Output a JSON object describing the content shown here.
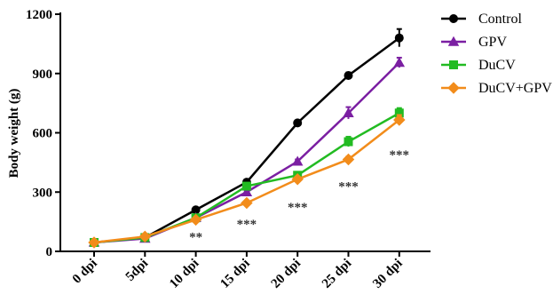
{
  "chart_data": {
    "type": "line",
    "ylabel": "Body weight (g)",
    "ylim": [
      0,
      1200
    ],
    "yticks": [
      "0",
      "300",
      "600",
      "900",
      "1200"
    ],
    "categories": [
      "0 dpi",
      "5dpi",
      "10 dpi",
      "15 dpi",
      "20 dpi",
      "25 dpi",
      "30 dpi"
    ],
    "series": [
      {
        "name": "Control",
        "marker": "circle",
        "color": "#000000",
        "values": [
          45,
          70,
          210,
          350,
          650,
          890,
          1080
        ],
        "errors": [
          0,
          0,
          10,
          10,
          10,
          15,
          45
        ]
      },
      {
        "name": "GPV",
        "marker": "triangle",
        "color": "#7b1fa2",
        "values": [
          45,
          65,
          170,
          300,
          455,
          700,
          955
        ],
        "errors": [
          0,
          0,
          8,
          10,
          10,
          30,
          25
        ]
      },
      {
        "name": "DuCV",
        "marker": "square",
        "color": "#22bb22",
        "values": [
          45,
          70,
          170,
          330,
          385,
          555,
          700
        ],
        "errors": [
          0,
          0,
          8,
          10,
          10,
          25,
          25
        ]
      },
      {
        "name": "DuCV+GPV",
        "marker": "diamond",
        "color": "#f28c1b",
        "values": [
          45,
          75,
          160,
          245,
          365,
          465,
          665
        ],
        "errors": [
          0,
          0,
          8,
          10,
          10,
          15,
          25
        ]
      }
    ],
    "annotations": [
      {
        "category": "10 dpi",
        "text": "**",
        "y": 75
      },
      {
        "category": "15 dpi",
        "text": "***",
        "y": 140
      },
      {
        "category": "20 dpi",
        "text": "***",
        "y": 225
      },
      {
        "category": "25 dpi",
        "text": "***",
        "y": 330
      },
      {
        "category": "30 dpi",
        "text": "***",
        "y": 490
      }
    ],
    "legend": "top-right"
  }
}
